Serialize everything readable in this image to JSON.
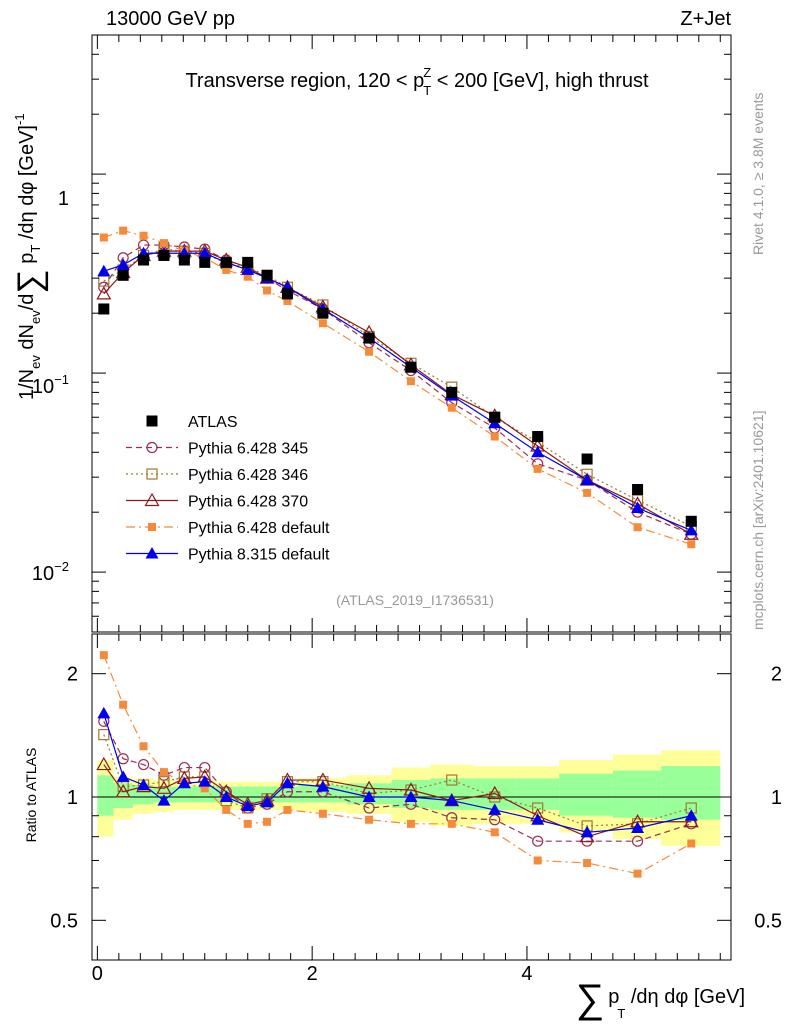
{
  "header": {
    "energy_label": "13000 GeV pp",
    "process_label": "Z+Jet"
  },
  "side_text": {
    "rivet": "Rivet 4.1.0, ≥ 3.8M events",
    "mcplots": "mcplots.cern.ch [arXiv:2401.10621]"
  },
  "chart_data": [
    {
      "type": "scatter",
      "panel": "main",
      "title_parts": {
        "pre": "Transverse region, 120 < p",
        "sub": "T",
        "sup": "Z",
        "post": " < 200 [GeV], high thrust"
      },
      "ylabel": "1/N_ev dN_ev/d∑ p_T /dη dφ [GeV]^-1",
      "ylabel_parts": {
        "a": "1/N",
        "a_sub": "ev",
        "b": " dN",
        "b_sub": "ev",
        "c": "/d",
        "sum": "∑",
        "d": " p",
        "d_sub": "T",
        "e": " /dη dφ  [GeV]",
        "e_sup": "-1"
      },
      "yscale": "log",
      "ylim": [
        0.005,
        5
      ],
      "xlim": [
        -0.05,
        5.9
      ],
      "ytick_labels": {
        "one": "1",
        "m1_base": "10",
        "m1_exp": "−1",
        "m2_base": "10",
        "m2_exp": "−2"
      },
      "watermark": "(ATLAS_2019_I1736531)",
      "x": [
        0.06,
        0.24,
        0.43,
        0.62,
        0.81,
        1.0,
        1.2,
        1.4,
        1.58,
        1.77,
        2.1,
        2.53,
        2.92,
        3.3,
        3.7,
        4.1,
        4.56,
        5.03,
        5.53
      ],
      "series": [
        {
          "name": "ATLAS",
          "marker": "square",
          "color": "#000000",
          "line": "none",
          "values": [
            0.21,
            0.31,
            0.37,
            0.39,
            0.37,
            0.36,
            0.36,
            0.36,
            0.31,
            0.25,
            0.2,
            0.15,
            0.107,
            0.08,
            0.06,
            0.048,
            0.037,
            0.026,
            0.018
          ]
        },
        {
          "name": "Pythia 6.428 345",
          "marker": "circle-open",
          "color": "#9b2d52",
          "line": "dashed",
          "values": [
            0.27,
            0.38,
            0.44,
            0.44,
            0.43,
            0.42,
            0.37,
            0.34,
            0.3,
            0.26,
            0.21,
            0.142,
            0.103,
            0.071,
            0.053,
            0.035,
            0.029,
            0.02,
            0.0155
          ]
        },
        {
          "name": "Pythia 6.428 346",
          "marker": "square-open",
          "color": "#a07830",
          "line": "dotted",
          "values": [
            0.29,
            0.33,
            0.39,
            0.42,
            0.41,
            0.4,
            0.355,
            0.34,
            0.31,
            0.27,
            0.22,
            0.153,
            0.112,
            0.085,
            0.06,
            0.045,
            0.031,
            0.023,
            0.017
          ]
        },
        {
          "name": "Pythia 6.428 370",
          "marker": "triangle-open",
          "color": "#8b1a1a",
          "line": "solid",
          "values": [
            0.25,
            0.32,
            0.39,
            0.41,
            0.41,
            0.41,
            0.37,
            0.34,
            0.3,
            0.27,
            0.215,
            0.16,
            0.11,
            0.078,
            0.061,
            0.043,
            0.029,
            0.022,
            0.0155
          ]
        },
        {
          "name": "Pythia 6.428 default",
          "marker": "square-small",
          "color": "#f58b3a",
          "line": "dashdot",
          "values": [
            0.48,
            0.52,
            0.49,
            0.45,
            0.41,
            0.38,
            0.33,
            0.305,
            0.26,
            0.23,
            0.178,
            0.128,
            0.091,
            0.067,
            0.048,
            0.033,
            0.025,
            0.0168,
            0.0138
          ]
        },
        {
          "name": "Pythia 8.315 default",
          "marker": "triangle",
          "color": "#0000ee",
          "line": "solid",
          "values": [
            0.325,
            0.35,
            0.4,
            0.4,
            0.4,
            0.4,
            0.36,
            0.33,
            0.3,
            0.27,
            0.21,
            0.15,
            0.107,
            0.077,
            0.056,
            0.04,
            0.029,
            0.021,
            0.0162
          ]
        }
      ]
    },
    {
      "type": "scatter",
      "panel": "ratio",
      "ylabel": "Ratio to ATLAS",
      "xlabel": "∑ p_T /dη dφ [GeV]",
      "xlabel_parts": {
        "sum": "∑",
        "p": "p",
        "sub": "T",
        "rest": " /dη dφ [GeV]"
      },
      "yscale": "log",
      "ylim": [
        0.4,
        2.5
      ],
      "xlim": [
        -0.05,
        5.9
      ],
      "xticks": [
        "0",
        "2",
        "4"
      ],
      "xtick_values": [
        0,
        2,
        4
      ],
      "yticks": [
        "0.5",
        "1",
        "2"
      ],
      "ytick_values": [
        0.5,
        1,
        2
      ],
      "bin_edges": [
        0.0,
        0.15,
        0.33,
        0.52,
        0.71,
        0.9,
        1.1,
        1.3,
        1.49,
        1.67,
        1.87,
        2.32,
        2.74,
        3.1,
        3.5,
        3.9,
        4.3,
        4.8,
        5.25,
        5.8
      ],
      "bands": {
        "inner_color": "#99ff99",
        "outer_color": "#ffff99",
        "inner": [
          [
            0.9,
            1.13
          ],
          [
            0.94,
            1.08
          ],
          [
            0.96,
            1.07
          ],
          [
            0.97,
            1.06
          ],
          [
            0.97,
            1.06
          ],
          [
            0.97,
            1.06
          ],
          [
            0.97,
            1.06
          ],
          [
            0.97,
            1.06
          ],
          [
            0.97,
            1.06
          ],
          [
            0.97,
            1.06
          ],
          [
            0.97,
            1.07
          ],
          [
            0.96,
            1.08
          ],
          [
            0.94,
            1.1
          ],
          [
            0.93,
            1.11
          ],
          [
            0.93,
            1.11
          ],
          [
            0.93,
            1.11
          ],
          [
            0.9,
            1.14
          ],
          [
            0.89,
            1.16
          ],
          [
            0.88,
            1.19
          ]
        ],
        "outer": [
          [
            0.8,
            1.23
          ],
          [
            0.88,
            1.12
          ],
          [
            0.91,
            1.11
          ],
          [
            0.92,
            1.1
          ],
          [
            0.93,
            1.09
          ],
          [
            0.93,
            1.09
          ],
          [
            0.93,
            1.09
          ],
          [
            0.93,
            1.09
          ],
          [
            0.93,
            1.09
          ],
          [
            0.93,
            1.09
          ],
          [
            0.92,
            1.11
          ],
          [
            0.91,
            1.13
          ],
          [
            0.87,
            1.18
          ],
          [
            0.85,
            1.2
          ],
          [
            0.86,
            1.19
          ],
          [
            0.86,
            1.19
          ],
          [
            0.82,
            1.23
          ],
          [
            0.79,
            1.27
          ],
          [
            0.76,
            1.3
          ]
        ]
      },
      "x": [
        0.06,
        0.24,
        0.43,
        0.62,
        0.81,
        1.0,
        1.2,
        1.4,
        1.58,
        1.77,
        2.1,
        2.53,
        2.92,
        3.3,
        3.7,
        4.1,
        4.56,
        5.03,
        5.53
      ],
      "series": [
        {
          "name": "Pythia 6.428 345",
          "marker": "circle-open",
          "color": "#9b2d52",
          "line": "dashed",
          "values": [
            1.53,
            1.24,
            1.2,
            1.13,
            1.18,
            1.18,
            1.03,
            0.94,
            0.96,
            1.03,
            1.03,
            0.94,
            0.96,
            0.89,
            0.88,
            0.78,
            0.78,
            0.78,
            0.86
          ]
        },
        {
          "name": "Pythia 6.428 346",
          "marker": "square-open",
          "color": "#a07830",
          "line": "dotted",
          "values": [
            1.42,
            1.06,
            1.07,
            1.09,
            1.12,
            1.12,
            0.98,
            0.94,
            0.99,
            1.09,
            1.09,
            1.02,
            1.04,
            1.1,
            1.0,
            0.94,
            0.85,
            0.86,
            0.94
          ]
        },
        {
          "name": "Pythia 6.428 370",
          "marker": "triangle-open",
          "color": "#8b1a1a",
          "line": "solid",
          "values": [
            1.2,
            1.03,
            1.06,
            1.05,
            1.11,
            1.12,
            1.03,
            0.96,
            0.98,
            1.1,
            1.1,
            1.05,
            1.04,
            0.98,
            1.02,
            0.9,
            0.8,
            0.87,
            0.87
          ]
        },
        {
          "name": "Pythia 6.428 default",
          "marker": "square-small",
          "color": "#f58b3a",
          "line": "dashdot",
          "values": [
            2.22,
            1.68,
            1.33,
            1.15,
            1.08,
            1.05,
            0.93,
            0.86,
            0.87,
            0.93,
            0.91,
            0.88,
            0.86,
            0.86,
            0.82,
            0.7,
            0.69,
            0.65,
            0.77
          ]
        },
        {
          "name": "Pythia 8.315 default",
          "marker": "triangle",
          "color": "#0000ee",
          "line": "solid",
          "values": [
            1.6,
            1.12,
            1.07,
            0.98,
            1.08,
            1.09,
            1.0,
            0.95,
            0.97,
            1.08,
            1.06,
            1.0,
            1.0,
            0.98,
            0.93,
            0.88,
            0.82,
            0.84,
            0.9
          ]
        }
      ]
    }
  ]
}
